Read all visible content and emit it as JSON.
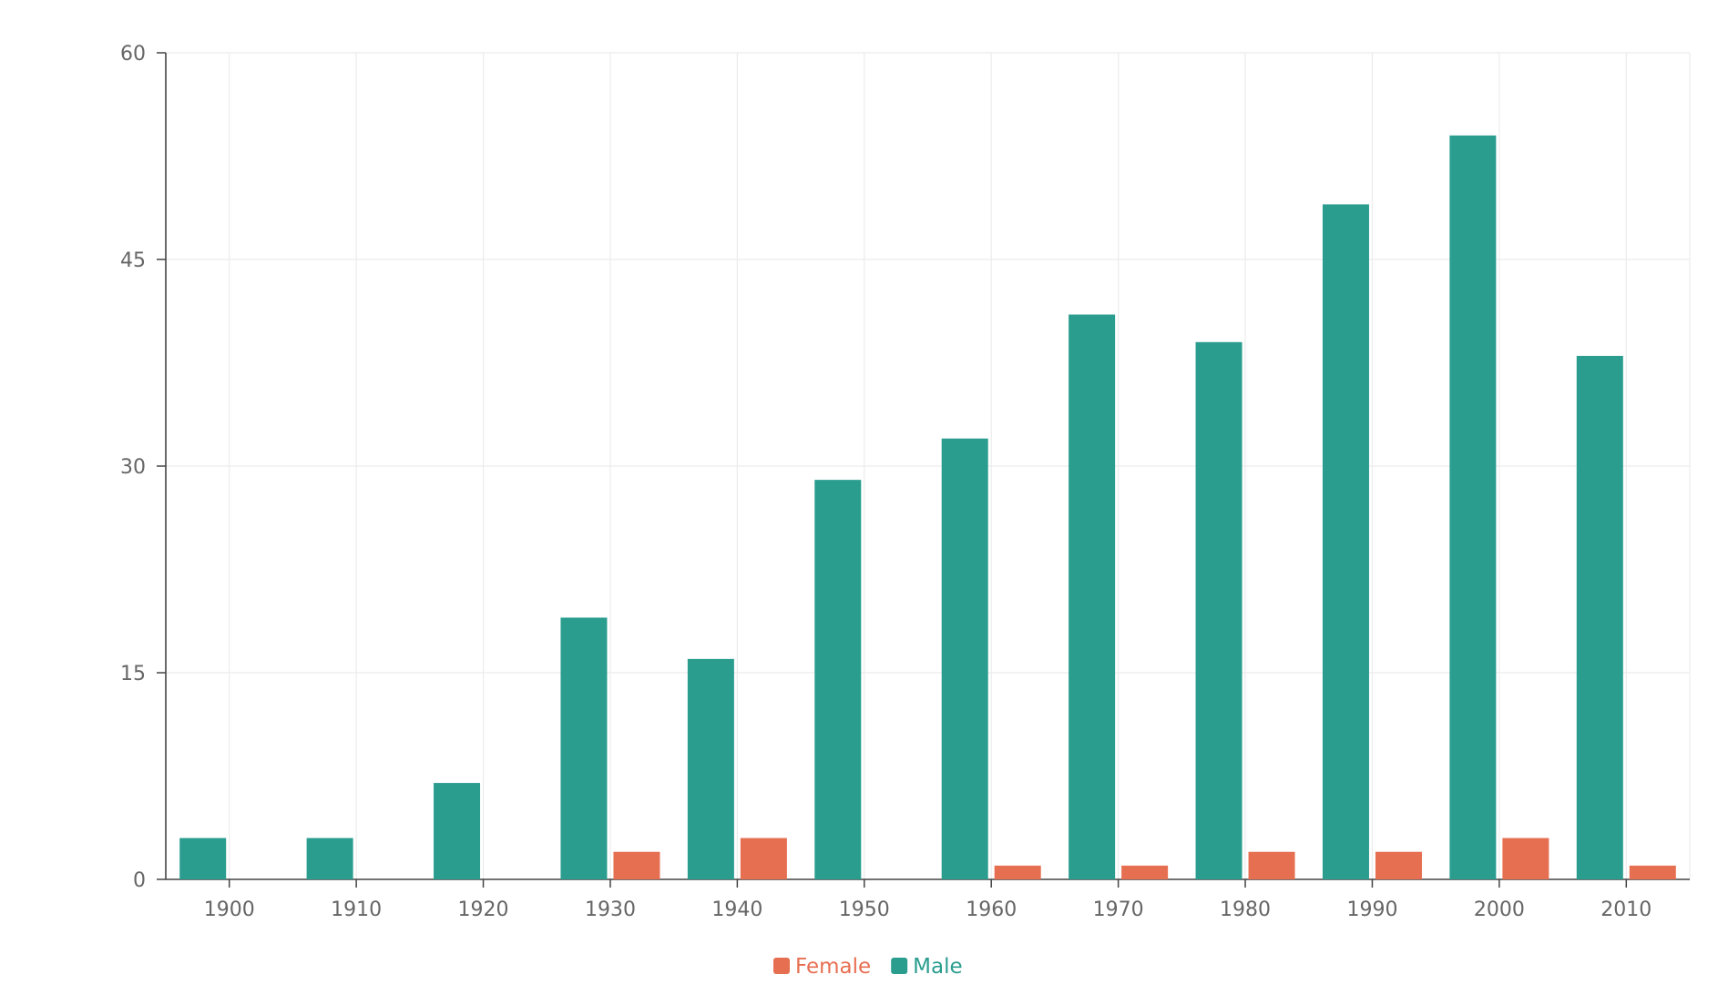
{
  "chart_data": {
    "type": "bar",
    "title": "",
    "xlabel": "",
    "ylabel": "",
    "categories": [
      "1900",
      "1910",
      "1920",
      "1930",
      "1940",
      "1950",
      "1960",
      "1970",
      "1980",
      "1990",
      "2000",
      "2010"
    ],
    "series": [
      {
        "name": "Male",
        "color": "#2a9d8f",
        "values": [
          3,
          3,
          7,
          19,
          16,
          29,
          32,
          41,
          39,
          49,
          54,
          38
        ]
      },
      {
        "name": "Female",
        "color": "#e76f51",
        "values": [
          0,
          0,
          0,
          2,
          3,
          0,
          1,
          1,
          2,
          2,
          3,
          1
        ]
      }
    ],
    "ylim": [
      0,
      60
    ],
    "yticks": [
      "0",
      "15",
      "30",
      "45",
      "60"
    ],
    "grid": true,
    "legend": {
      "position": "bottom-center",
      "order": [
        "Female",
        "Male"
      ]
    }
  }
}
